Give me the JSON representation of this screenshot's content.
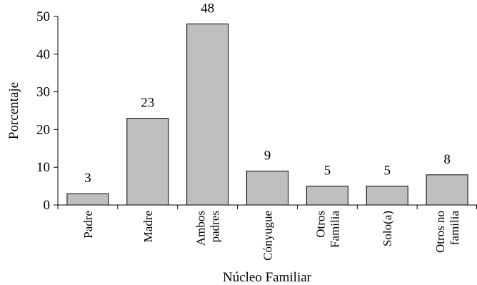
{
  "chart_data": {
    "type": "bar",
    "categories": [
      [
        "Padre"
      ],
      [
        "Madre"
      ],
      [
        "Ambos",
        "padres"
      ],
      [
        "Cónyugue"
      ],
      [
        "Otros",
        "Familia"
      ],
      [
        "Solo(a)"
      ],
      [
        "Otros no",
        "familia"
      ]
    ],
    "values": [
      3,
      23,
      48,
      9,
      5,
      5,
      8
    ],
    "data_labels": [
      "3",
      "23",
      "48",
      "9",
      "5",
      "5",
      "8"
    ],
    "xlabel": "Núcleo Familiar",
    "ylabel": "Porcentaje",
    "ylim": [
      0,
      50
    ],
    "yticks": [
      0,
      10,
      20,
      30,
      40,
      50
    ],
    "grid": false,
    "bar_color": "#bfbfbf",
    "bar_edge_color": "#000000"
  }
}
